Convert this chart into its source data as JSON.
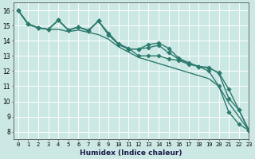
{
  "xlabel": "Humidex (Indice chaleur)",
  "ylabel": "",
  "xlim": [
    -0.5,
    23
  ],
  "ylim": [
    7.5,
    16.5
  ],
  "yticks": [
    8,
    9,
    10,
    11,
    12,
    13,
    14,
    15,
    16
  ],
  "xticks": [
    0,
    1,
    2,
    3,
    4,
    5,
    6,
    7,
    8,
    9,
    10,
    11,
    12,
    13,
    14,
    15,
    16,
    17,
    18,
    19,
    20,
    21,
    22,
    23
  ],
  "background_color": "#cce8e4",
  "grid_color": "#ffffff",
  "line_color": "#2d7a6e",
  "lines": [
    [
      16.0,
      15.1,
      14.85,
      14.75,
      15.35,
      14.7,
      14.9,
      14.65,
      15.3,
      14.4,
      13.75,
      13.45,
      13.45,
      13.75,
      13.85,
      13.5,
      12.85,
      12.55,
      12.3,
      12.25,
      11.85,
      10.2,
      9.45,
      8.1
    ],
    [
      16.0,
      15.1,
      14.85,
      14.75,
      15.35,
      14.7,
      14.9,
      14.65,
      15.3,
      14.4,
      13.75,
      13.45,
      13.45,
      13.55,
      13.7,
      13.2,
      12.8,
      12.5,
      12.3,
      12.2,
      11.9,
      10.8,
      9.45,
      8.1
    ],
    [
      16.0,
      15.1,
      14.85,
      14.75,
      15.35,
      14.7,
      14.9,
      14.7,
      15.3,
      14.5,
      13.8,
      13.5,
      13.0,
      13.0,
      13.0,
      12.8,
      12.7,
      12.45,
      12.3,
      12.0,
      11.0,
      9.3,
      8.5,
      8.1
    ],
    [
      16.0,
      15.05,
      14.85,
      14.75,
      14.75,
      14.6,
      14.7,
      14.55,
      14.4,
      14.1,
      13.6,
      13.25,
      12.9,
      12.7,
      12.5,
      12.3,
      12.1,
      11.9,
      11.7,
      11.5,
      11.0,
      9.9,
      9.0,
      8.1
    ]
  ],
  "marker_lines": [
    0,
    1,
    2
  ],
  "smooth_line": 3,
  "marker": "D",
  "markersize": 2.8,
  "linewidth": 1.0
}
